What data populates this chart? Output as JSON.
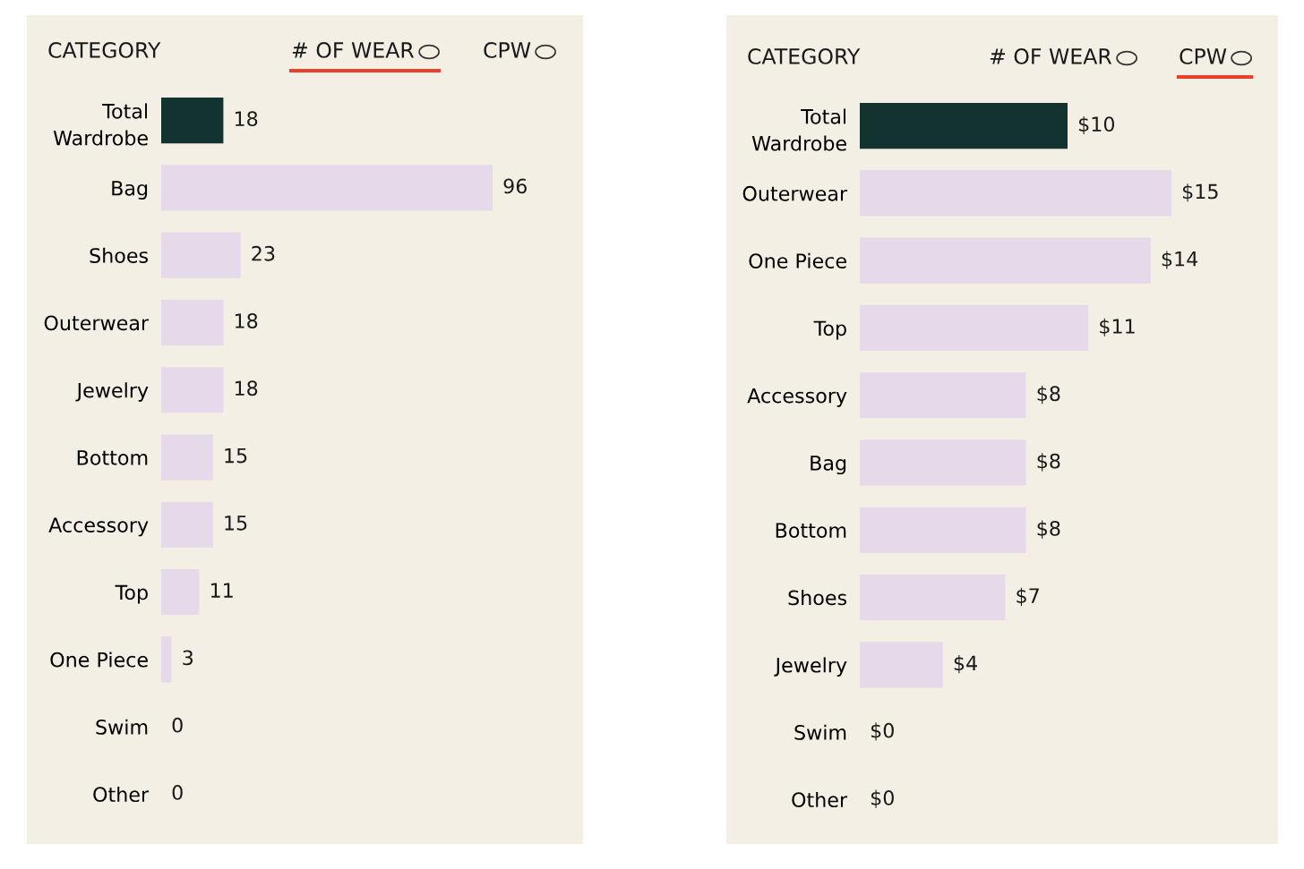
{
  "chart_data": [
    {
      "type": "bar",
      "orientation": "horizontal",
      "annotations": [
        "CATEGORY",
        "# OF WEAR",
        "CPW"
      ],
      "tick_labels": "y",
      "grid": false,
      "legend": false,
      "data_labels": true,
      "categories": [
        "Total\nWardrobe",
        "Bag",
        "Shoes",
        "Outerwear",
        "Jewelry",
        "Bottom",
        "Accessory",
        "Top",
        "One Piece",
        "Swim",
        "Other"
      ],
      "values": [
        18,
        96,
        23,
        18,
        18,
        15,
        15,
        11,
        3,
        0,
        0
      ],
      "colors": [
        "#12332f",
        "#e6d9ea",
        "#e6d9ea",
        "#e6d9ea",
        "#e6d9ea",
        "#e6d9ea",
        "#e6d9ea",
        "#e6d9ea",
        "#e6d9ea",
        "#e6d9ea",
        "#e6d9ea"
      ]
    },
    {
      "type": "bar",
      "orientation": "horizontal",
      "annotations": [
        "CATEGORY",
        "# OF WEAR",
        "CPW"
      ],
      "tick_labels": "y",
      "grid": false,
      "legend": false,
      "categories": [
        "Total\nWardrobe",
        "Outerwear",
        "One Piece",
        "Top",
        "Accessory",
        "Bag",
        "Bottom",
        "Shoes",
        "Jewelry",
        "Swim",
        "Other"
      ],
      "values": [
        10,
        15,
        14,
        11,
        8,
        8,
        8,
        7,
        4,
        0,
        0
      ],
      "value_labels": [
        "$10",
        "$15",
        "$14",
        "$11",
        "$8",
        "$8",
        "$8",
        "$7",
        "$4",
        "$0",
        "$0"
      ],
      "colors": [
        "#12332f",
        "#e6d9ea",
        "#e6d9ea",
        "#e6d9ea",
        "#e6d9ea",
        "#e6d9ea",
        "#e6d9ea",
        "#e6d9ea",
        "#e6d9ea",
        "#e6d9ea",
        "#e6d9ea"
      ]
    }
  ]
}
